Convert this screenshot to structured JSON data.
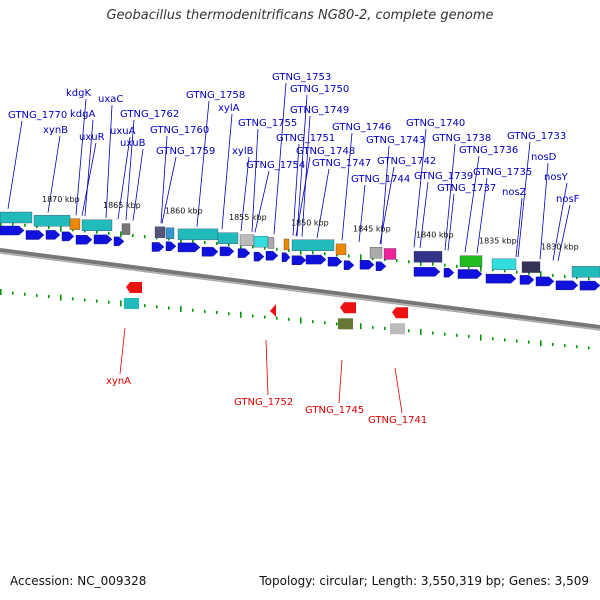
{
  "title": "Geobacillus thermodenitrificans NG80-2, complete genome",
  "footer": {
    "accession": "Accession: NC_009328",
    "info": "Topology: circular; Length: 3,550,319 bp; Genes: 3,509"
  },
  "colors": {
    "gene_label": "#0000bb",
    "rna_label": "#dd0000",
    "cds": "#1111dd",
    "tick": "#009900",
    "teal": "#22bbbb",
    "backbone": "#777777"
  },
  "scale_labels": [
    "1870 kbp",
    "1865 kbp",
    "1860 kbp",
    "1855 kbp",
    "1850 kbp",
    "1845 kbp",
    "1840 kbp",
    "1835 kbp",
    "1830 kbp"
  ],
  "upper_labels": [
    "GTNG_1770",
    "xynB",
    "kdgK",
    "kdgA",
    "uxaC",
    "uxuR",
    "uxuA",
    "uxuB",
    "GTNG_1762",
    "GTNG_1760",
    "GTNG_1759",
    "GTNG_1758",
    "xylA",
    "xylB",
    "GTNG_1755",
    "GTNG_1754",
    "GTNG_1753",
    "GTNG_1750",
    "GTNG_1749",
    "GTNG_1751",
    "GTNG_1748",
    "GTNG_1747",
    "GTNG_1746",
    "GTNG_1743",
    "GTNG_1744",
    "GTNG_1742",
    "GTNG_1740",
    "GTNG_1738",
    "GTNG_1739",
    "GTNG_1737",
    "GTNG_1736",
    "GTNG_1733",
    "GTNG_1735",
    "nosD",
    "nosZ",
    "nosY",
    "nosF"
  ],
  "lower_labels": [
    "xynA",
    "GTNG_1752",
    "GTNG_1745",
    "GTNG_1741"
  ]
}
